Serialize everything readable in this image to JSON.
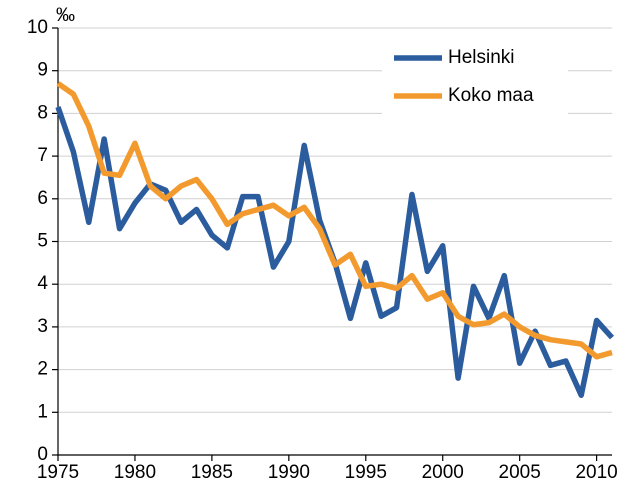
{
  "chart_data": {
    "type": "line",
    "y_label": "‰",
    "x": [
      1975,
      1976,
      1977,
      1978,
      1979,
      1980,
      1981,
      1982,
      1983,
      1984,
      1985,
      1986,
      1987,
      1988,
      1989,
      1990,
      1991,
      1992,
      1993,
      1994,
      1995,
      1996,
      1997,
      1998,
      1999,
      2000,
      2001,
      2002,
      2003,
      2004,
      2005,
      2006,
      2007,
      2008,
      2009,
      2010,
      2011
    ],
    "series": [
      {
        "name": "Helsinki",
        "color": "#2b5c9e",
        "values": [
          8.15,
          7.1,
          5.45,
          7.4,
          5.3,
          5.9,
          6.35,
          6.2,
          5.45,
          5.75,
          5.15,
          4.85,
          6.05,
          6.05,
          4.4,
          5.0,
          7.25,
          5.5,
          4.5,
          3.2,
          4.5,
          3.25,
          3.45,
          6.1,
          4.3,
          4.9,
          1.8,
          3.95,
          3.2,
          4.2,
          2.15,
          2.9,
          2.1,
          2.2,
          1.4,
          3.15,
          2.75
        ]
      },
      {
        "name": "Koko maa",
        "color": "#f39a2e",
        "values": [
          8.7,
          8.45,
          7.7,
          6.6,
          6.55,
          7.3,
          6.3,
          6.0,
          6.3,
          6.45,
          6.0,
          5.4,
          5.65,
          5.75,
          5.85,
          5.6,
          5.8,
          5.3,
          4.45,
          4.7,
          3.95,
          4.0,
          3.9,
          4.2,
          3.65,
          3.8,
          3.25,
          3.05,
          3.1,
          3.3,
          3.0,
          2.8,
          2.7,
          2.65,
          2.6,
          2.3,
          2.4
        ]
      }
    ],
    "xlim": [
      1975,
      2011
    ],
    "xticks": [
      1975,
      1980,
      1985,
      1990,
      1995,
      2000,
      2005,
      2010
    ],
    "ylim": [
      0,
      10
    ],
    "yticks": [
      0,
      1,
      2,
      3,
      4,
      5,
      6,
      7,
      8,
      9,
      10
    ],
    "grid": true,
    "legend": "upper right"
  }
}
